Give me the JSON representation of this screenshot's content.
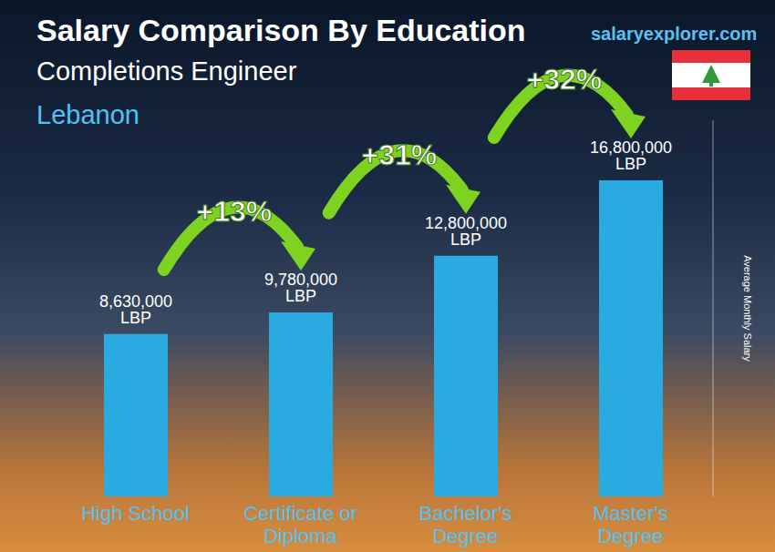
{
  "chart_data": {
    "type": "bar",
    "title": "Salary Comparison By Education",
    "subtitle": "Completions Engineer",
    "location": "Lebanon",
    "source": "salaryexplorer.com",
    "y_label": "Average Monthly Salary",
    "categories": [
      "High School",
      "Certificate or Diploma",
      "Bachelor's Degree",
      "Master's Degree"
    ],
    "values": [
      8630000,
      9780000,
      12800000,
      16800000
    ],
    "value_labels": [
      "8,630,000 LBP",
      "9,780,000 LBP",
      "12,800,000 LBP",
      "16,800,000 LBP"
    ],
    "data_labels": true,
    "color": "#29abe2",
    "ylim": [
      0,
      20000000
    ],
    "tick_labels": false,
    "grid": false,
    "annotations": [
      {
        "text": "+13%",
        "from": "High School",
        "to": "Certificate or Diploma"
      },
      {
        "text": "+31%",
        "from": "Certificate or Diploma",
        "to": "Bachelor's Degree"
      },
      {
        "text": "+32%",
        "from": "Bachelor's Degree",
        "to": "Master's Degree"
      }
    ]
  }
}
